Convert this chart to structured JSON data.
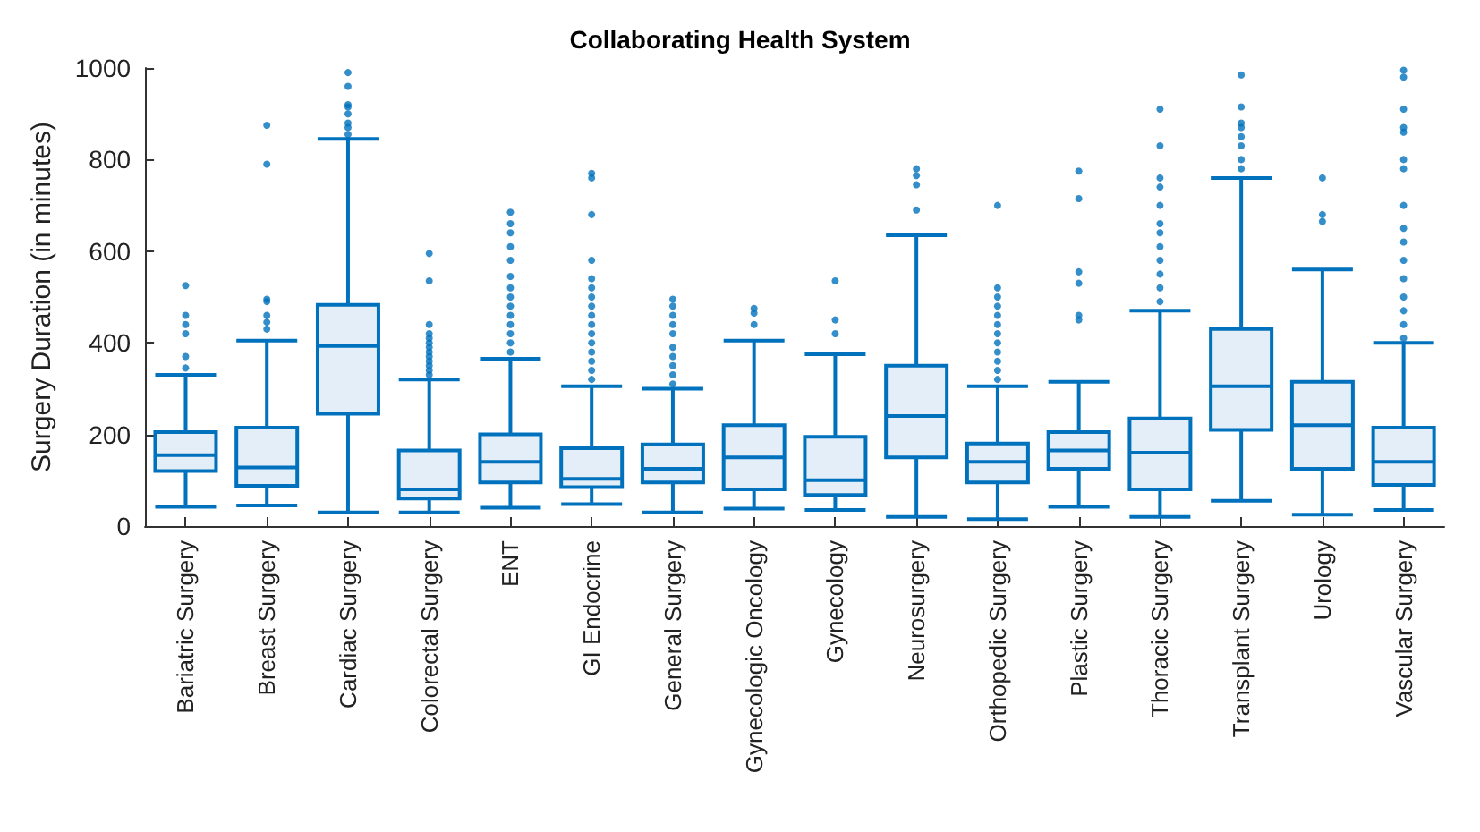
{
  "chart_data": {
    "type": "box",
    "title": "Collaborating Health System",
    "ylabel": "Surgery Duration (in minutes)",
    "categories": [
      "Bariatric Surgery",
      "Breast Surgery",
      "Cardiac Surgery",
      "Colorectal Surgery",
      "ENT",
      "GI Endocrine",
      "General Surgery",
      "Gynecologic Oncology",
      "Gynecology",
      "Neurosurgery",
      "Orthopedic Surgery",
      "Plastic Surgery",
      "Thoracic Surgery",
      "Transplant Surgery",
      "Urology",
      "Vascular Surgery"
    ],
    "color": "#0072bd",
    "ylim": [
      0,
      1000
    ],
    "yticks": [
      0,
      200,
      400,
      600,
      800,
      1000
    ],
    "grid": false,
    "boxes": [
      {
        "low": 42,
        "q1": 120,
        "median": 155,
        "q3": 205,
        "high": 330,
        "outliers": [
          345,
          370,
          420,
          440,
          460,
          525
        ]
      },
      {
        "low": 45,
        "q1": 88,
        "median": 128,
        "q3": 215,
        "high": 405,
        "outliers": [
          430,
          445,
          460,
          490,
          495,
          790,
          875
        ]
      },
      {
        "low": 30,
        "q1": 245,
        "median": 393,
        "q3": 483,
        "high": 845,
        "outliers": [
          855,
          870,
          880,
          900,
          915,
          920,
          960,
          990
        ]
      },
      {
        "low": 30,
        "q1": 60,
        "median": 80,
        "q3": 165,
        "high": 320,
        "outliers": [
          330,
          340,
          350,
          360,
          370,
          380,
          390,
          400,
          410,
          420,
          440,
          535,
          595
        ]
      },
      {
        "low": 40,
        "q1": 95,
        "median": 140,
        "q3": 200,
        "high": 365,
        "outliers": [
          380,
          400,
          420,
          440,
          460,
          480,
          500,
          520,
          545,
          580,
          610,
          640,
          660,
          685
        ]
      },
      {
        "low": 48,
        "q1": 85,
        "median": 103,
        "q3": 170,
        "high": 305,
        "outliers": [
          320,
          340,
          360,
          380,
          400,
          420,
          440,
          460,
          480,
          500,
          520,
          540,
          580,
          680,
          760,
          770
        ]
      },
      {
        "low": 30,
        "q1": 95,
        "median": 125,
        "q3": 178,
        "high": 300,
        "outliers": [
          310,
          330,
          350,
          370,
          390,
          420,
          440,
          460,
          480,
          495
        ]
      },
      {
        "low": 38,
        "q1": 80,
        "median": 150,
        "q3": 220,
        "high": 405,
        "outliers": [
          440,
          465,
          475
        ]
      },
      {
        "low": 35,
        "q1": 68,
        "median": 100,
        "q3": 195,
        "high": 375,
        "outliers": [
          420,
          450,
          535
        ]
      },
      {
        "low": 20,
        "q1": 150,
        "median": 240,
        "q3": 350,
        "high": 635,
        "outliers": [
          690,
          745,
          765,
          780
        ]
      },
      {
        "low": 15,
        "q1": 95,
        "median": 140,
        "q3": 180,
        "high": 305,
        "outliers": [
          320,
          340,
          360,
          380,
          400,
          420,
          440,
          460,
          480,
          500,
          520,
          700
        ]
      },
      {
        "low": 42,
        "q1": 125,
        "median": 165,
        "q3": 205,
        "high": 315,
        "outliers": [
          450,
          460,
          530,
          555,
          715,
          775
        ]
      },
      {
        "low": 20,
        "q1": 80,
        "median": 160,
        "q3": 235,
        "high": 470,
        "outliers": [
          490,
          520,
          550,
          580,
          610,
          640,
          660,
          700,
          740,
          760,
          830,
          910
        ]
      },
      {
        "low": 55,
        "q1": 210,
        "median": 305,
        "q3": 430,
        "high": 760,
        "outliers": [
          780,
          800,
          830,
          850,
          870,
          880,
          915,
          985
        ]
      },
      {
        "low": 25,
        "q1": 125,
        "median": 220,
        "q3": 315,
        "high": 560,
        "outliers": [
          665,
          680,
          760
        ]
      },
      {
        "low": 35,
        "q1": 90,
        "median": 140,
        "q3": 215,
        "high": 400,
        "outliers": [
          410,
          440,
          470,
          500,
          540,
          580,
          620,
          650,
          700,
          780,
          800,
          860,
          870,
          910,
          980,
          995
        ]
      }
    ]
  }
}
